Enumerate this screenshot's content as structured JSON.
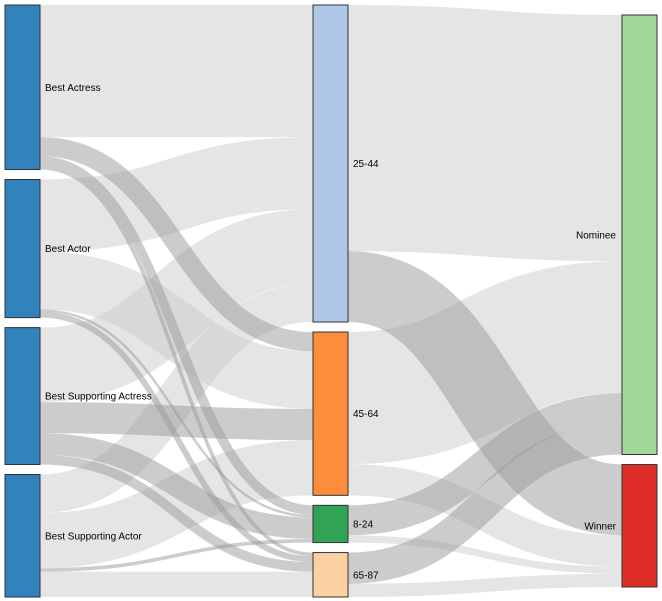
{
  "chart_data": {
    "type": "sankey",
    "title": "",
    "columns": [
      [
        "Best Actress",
        "Best Actor",
        "Best Supporting Actress",
        "Best Supporting Actor"
      ],
      [
        "25-44",
        "45-64",
        "8-24",
        "65-87"
      ],
      [
        "Nominee",
        "Winner"
      ]
    ],
    "nodes": [
      {
        "name": "Best Actress",
        "color": "#3182bd"
      },
      {
        "name": "Best Actor",
        "color": "#3182bd"
      },
      {
        "name": "Best Supporting Actress",
        "color": "#3182bd"
      },
      {
        "name": "Best Supporting Actor",
        "color": "#3182bd"
      },
      {
        "name": "25-44",
        "color": "#aec7e8"
      },
      {
        "name": "45-64",
        "color": "#fd8d3c"
      },
      {
        "name": "8-24",
        "color": "#31a354"
      },
      {
        "name": "65-87",
        "color": "#fdd0a2"
      },
      {
        "name": "Nominee",
        "color": "#a1d99b"
      },
      {
        "name": "Winner",
        "color": "#de2d26"
      }
    ],
    "links": [
      {
        "source": "Best Actress",
        "target": "25-44",
        "value": 110,
        "color": "#cccccc"
      },
      {
        "source": "Best Actress",
        "target": "45-64",
        "value": 16,
        "color": "#999999"
      },
      {
        "source": "Best Actress",
        "target": "8-24",
        "value": 8,
        "color": "#999999"
      },
      {
        "source": "Best Actress",
        "target": "65-87",
        "value": 3,
        "color": "#999999"
      },
      {
        "source": "Best Actor",
        "target": "25-44",
        "value": 60,
        "color": "#cccccc"
      },
      {
        "source": "Best Actor",
        "target": "45-64",
        "value": 48,
        "color": "#cccccc"
      },
      {
        "source": "Best Actor",
        "target": "8-24",
        "value": 2,
        "color": "#999999"
      },
      {
        "source": "Best Actor",
        "target": "65-87",
        "value": 5,
        "color": "#999999"
      },
      {
        "source": "Best Supporting Actress",
        "target": "25-44",
        "value": 62,
        "color": "#cccccc"
      },
      {
        "source": "Best Supporting Actress",
        "target": "45-64",
        "value": 26,
        "color": "#999999"
      },
      {
        "source": "Best Supporting Actress",
        "target": "8-24",
        "value": 18,
        "color": "#999999"
      },
      {
        "source": "Best Supporting Actress",
        "target": "65-87",
        "value": 8,
        "color": "#999999"
      },
      {
        "source": "Best Supporting Actor",
        "target": "25-44",
        "value": 32,
        "color": "#cccccc"
      },
      {
        "source": "Best Supporting Actor",
        "target": "45-64",
        "value": 46,
        "color": "#cccccc"
      },
      {
        "source": "Best Supporting Actor",
        "target": "8-24",
        "value": 3,
        "color": "#999999"
      },
      {
        "source": "Best Supporting Actor",
        "target": "65-87",
        "value": 21,
        "color": "#cccccc"
      },
      {
        "source": "25-44",
        "target": "Nominee",
        "value": 205,
        "color": "#cccccc"
      },
      {
        "source": "25-44",
        "target": "Winner",
        "value": 59,
        "color": "#999999"
      },
      {
        "source": "45-64",
        "target": "Nominee",
        "value": 110,
        "color": "#cccccc"
      },
      {
        "source": "45-64",
        "target": "Winner",
        "value": 26,
        "color": "#cccccc"
      },
      {
        "source": "8-24",
        "target": "Nominee",
        "value": 25,
        "color": "#999999"
      },
      {
        "source": "8-24",
        "target": "Winner",
        "value": 6,
        "color": "#cccccc"
      },
      {
        "source": "65-87",
        "target": "Nominee",
        "value": 26,
        "color": "#999999"
      },
      {
        "source": "65-87",
        "target": "Winner",
        "value": 11,
        "color": "#cccccc"
      }
    ]
  }
}
